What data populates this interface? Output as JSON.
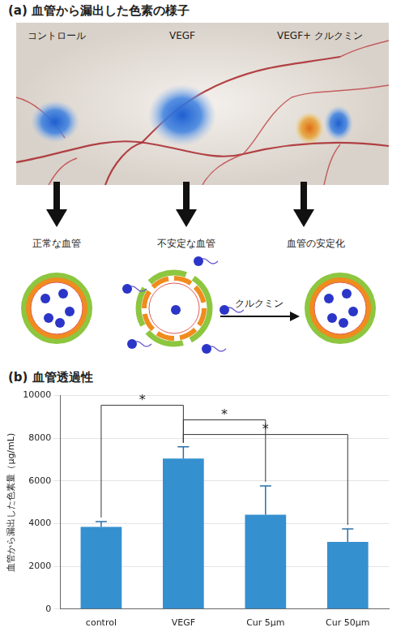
{
  "panel_a": {
    "title": "(a) 血管から漏出した色素の様子",
    "columns": [
      "コントロール",
      "VEGF",
      "VEGF+ クルクミン"
    ],
    "states": [
      "正常な血管",
      "不安定な血管",
      "血管の安定化"
    ],
    "arrow_label": "クルクミン"
  },
  "chart_data": {
    "type": "bar",
    "title": "(b) 血管透過性",
    "y_label": "血管から漏出した色素量（μg/mL)",
    "categories": [
      "control",
      "VEGF",
      "Cur 5μm",
      "Cur 50μm"
    ],
    "values": [
      3850,
      7050,
      4420,
      3150
    ],
    "errors": [
      250,
      550,
      1350,
      600
    ],
    "color": "#3590d0",
    "ylim": [
      0,
      10000
    ],
    "yticks": [
      0,
      2000,
      4000,
      6000,
      8000,
      10000
    ],
    "grid": true,
    "significance": [
      {
        "pair": [
          "control",
          "VEGF"
        ],
        "label": "*"
      },
      {
        "pair": [
          "VEGF",
          "Cur 5μm"
        ],
        "label": "*"
      },
      {
        "pair": [
          "VEGF",
          "Cur 50μm"
        ],
        "label": "*"
      }
    ]
  }
}
